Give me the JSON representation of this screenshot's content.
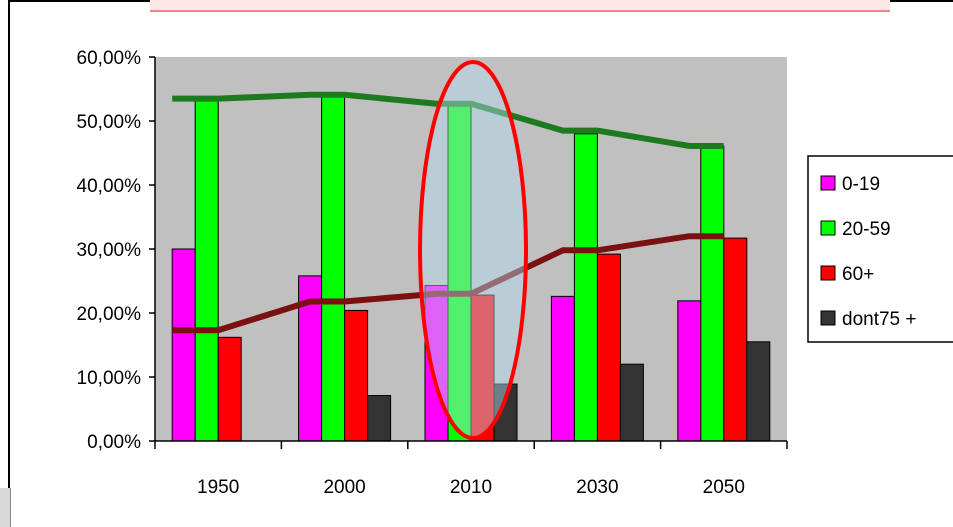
{
  "chart_data": {
    "type": "bar",
    "categories": [
      "1950",
      "2000",
      "2010",
      "2030",
      "2050"
    ],
    "series": [
      {
        "name": "0-19",
        "color": "#ff00ff",
        "values": [
          0.3,
          0.258,
          0.243,
          0.226,
          0.219
        ]
      },
      {
        "name": "20-59",
        "color": "#00ff00",
        "values": [
          0.536,
          0.54,
          0.53,
          0.48,
          0.461
        ]
      },
      {
        "name": "60+",
        "color": "#ff0000",
        "values": [
          0.162,
          0.204,
          0.228,
          0.292,
          0.317
        ]
      },
      {
        "name": "dont75 +",
        "color": "#333333",
        "values": [
          0.0,
          0.071,
          0.089,
          0.12,
          0.155
        ]
      }
    ],
    "trend_lines": [
      {
        "color": "#1e7a1e",
        "values": [
          0.535,
          0.541,
          0.527,
          0.485,
          0.461
        ]
      },
      {
        "color": "#7a1010",
        "values": [
          0.173,
          0.218,
          0.23,
          0.298,
          0.32
        ]
      }
    ],
    "yticks": [
      "0,00%",
      "10,00%",
      "20,00%",
      "30,00%",
      "40,00%",
      "50,00%",
      "60,00%"
    ],
    "ylim": [
      0,
      0.6
    ],
    "grid": false,
    "legend_position": "right",
    "annotation": {
      "shape": "ellipse",
      "color": "#ff0000",
      "category": "2010"
    }
  }
}
